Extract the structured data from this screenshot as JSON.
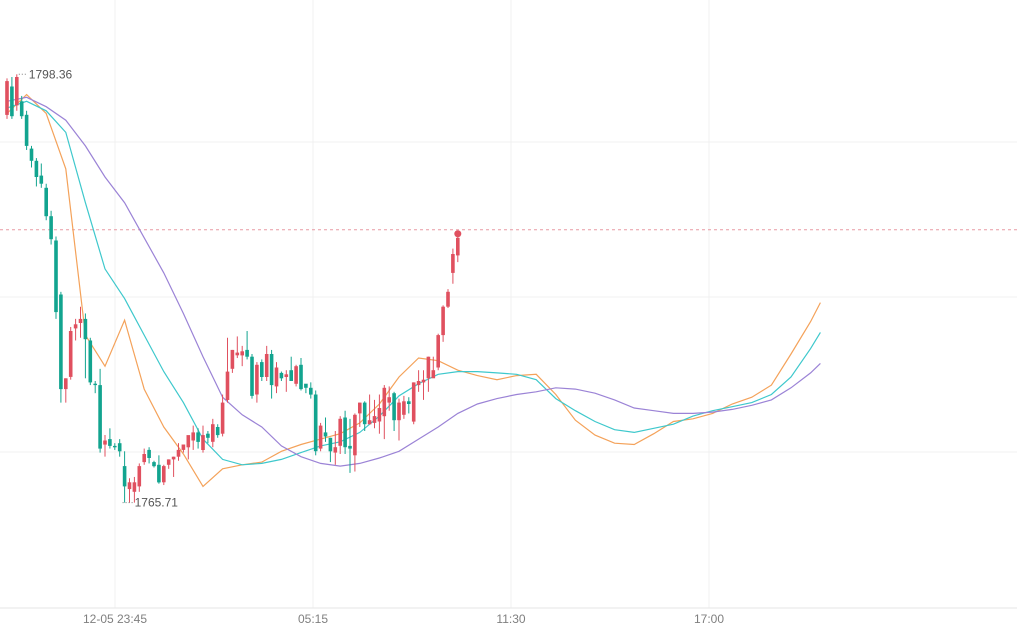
{
  "chart_data": {
    "type": "candlestick",
    "ylim": [
      1759,
      1804
    ],
    "x_ticks": [
      "12-05 23:45",
      "05:15",
      "11:30",
      "17:00"
    ],
    "current_price": 1787,
    "annotations": {
      "high": "1798.36",
      "low": "1765.71"
    },
    "colors": {
      "up": "#e0505f",
      "down": "#12a48f",
      "ma1": "#f4a25a",
      "ma2": "#3ec8cc",
      "ma3": "#9b83d6",
      "grid": "#f0f0f0",
      "text": "#7f7f7f"
    },
    "candles": [
      [
        1795.5,
        1798.0,
        1795.2,
        1798.2
      ],
      [
        1797.6,
        1795.4,
        1795.2,
        1798.3
      ],
      [
        1796.2,
        1798.3,
        1795.8,
        1798.5
      ],
      [
        1796.5,
        1795.4,
        1795.2,
        1796.9
      ],
      [
        1795.5,
        1793.2,
        1792.9,
        1795.8
      ],
      [
        1793.0,
        1792.1,
        1791.6,
        1793.2
      ],
      [
        1792.1,
        1790.9,
        1790.2,
        1792.3
      ],
      [
        1791.0,
        1790.4,
        1790.1,
        1791.9
      ],
      [
        1790.1,
        1788.0,
        1787.7,
        1790.4
      ],
      [
        1788.0,
        1786.3,
        1785.9,
        1788.4
      ],
      [
        1786.2,
        1780.9,
        1780.4,
        1786.5
      ],
      [
        1782.2,
        1775.2,
        1774.2,
        1782.4
      ],
      [
        1775.2,
        1776.0,
        1774.2,
        1776.0
      ],
      [
        1776.1,
        1779.5,
        1775.9,
        1779.8
      ],
      [
        1779.7,
        1780.0,
        1778.8,
        1780.4
      ],
      [
        1780.1,
        1780.4,
        1779.0,
        1781.3
      ],
      [
        1780.4,
        1778.9,
        1776.0,
        1780.8
      ],
      [
        1778.8,
        1775.7,
        1775.5,
        1779.0
      ],
      [
        1775.6,
        1775.5,
        1774.9,
        1775.8
      ],
      [
        1775.5,
        1770.8,
        1770.5,
        1776.7
      ],
      [
        1771.1,
        1771.4,
        1770.2,
        1771.8
      ],
      [
        1771.5,
        1771.0,
        1770.8,
        1772.3
      ],
      [
        1771.0,
        1770.9,
        1770.7,
        1771.2
      ],
      [
        1771.2,
        1770.6,
        1770.2,
        1771.5
      ],
      [
        1769.5,
        1768.0,
        1766.8,
        1770.6
      ],
      [
        1767.8,
        1768.3,
        1766.8,
        1768.6
      ],
      [
        1767.6,
        1768.3,
        1766.8,
        1768.7
      ],
      [
        1768.0,
        1769.5,
        1767.6,
        1769.7
      ],
      [
        1769.8,
        1770.4,
        1769.6,
        1770.8
      ],
      [
        1770.7,
        1770.1,
        1769.7,
        1770.9
      ],
      [
        1769.8,
        1769.5,
        1769.4,
        1769.9
      ],
      [
        1769.6,
        1768.3,
        1768.2,
        1770.3
      ],
      [
        1768.3,
        1769.5,
        1768.1,
        1769.6
      ],
      [
        1769.6,
        1770.0,
        1769.3,
        1770.0
      ],
      [
        1770.0,
        1770.2,
        1768.7,
        1770.2
      ],
      [
        1770.2,
        1770.7,
        1769.9,
        1771.2
      ],
      [
        1770.7,
        1771.1,
        1770.5,
        1771.1
      ],
      [
        1770.9,
        1771.8,
        1770.0,
        1771.6
      ],
      [
        1771.4,
        1772.0,
        1770.7,
        1772.5
      ],
      [
        1772.0,
        1771.3,
        1770.8,
        1772.3
      ],
      [
        1770.7,
        1771.8,
        1770.5,
        1772.5
      ],
      [
        1771.9,
        1771.6,
        1771.2,
        1772.1
      ],
      [
        1771.3,
        1772.6,
        1770.9,
        1773.0
      ],
      [
        1772.4,
        1771.8,
        1771.6,
        1772.6
      ],
      [
        1771.9,
        1774.2,
        1771.7,
        1774.8
      ],
      [
        1774.4,
        1776.5,
        1774.2,
        1779.0
      ],
      [
        1776.7,
        1778.1,
        1776.4,
        1778.1
      ],
      [
        1777.7,
        1777.9,
        1777.5,
        1779.1
      ],
      [
        1777.7,
        1778.0,
        1776.9,
        1778.4
      ],
      [
        1778.1,
        1777.6,
        1777.4,
        1779.5
      ],
      [
        1777.6,
        1774.7,
        1774.5,
        1777.8
      ],
      [
        1774.8,
        1777.0,
        1774.2,
        1777.2
      ],
      [
        1777.2,
        1776.1,
        1775.8,
        1777.4
      ],
      [
        1776.1,
        1777.8,
        1775.8,
        1778.4
      ],
      [
        1777.8,
        1775.5,
        1774.5,
        1778.1
      ],
      [
        1775.4,
        1776.8,
        1774.9,
        1777.2
      ],
      [
        1776.4,
        1776.0,
        1775.8,
        1776.5
      ],
      [
        1776.1,
        1776.3,
        1775.0,
        1776.6
      ],
      [
        1776.6,
        1775.8,
        1775.8,
        1777.6
      ],
      [
        1775.6,
        1776.9,
        1775.4,
        1777.0
      ],
      [
        1777.0,
        1775.2,
        1775.1,
        1777.5
      ],
      [
        1775.6,
        1775.3,
        1774.9,
        1775.5
      ],
      [
        1775.3,
        1774.8,
        1774.5,
        1775.7
      ],
      [
        1774.8,
        1770.6,
        1770.3,
        1775.1
      ],
      [
        1770.8,
        1772.5,
        1770.6,
        1772.7
      ],
      [
        1772.0,
        1771.7,
        1771.3,
        1773.1
      ],
      [
        1771.6,
        1770.6,
        1769.8,
        1771.6
      ],
      [
        1770.5,
        1770.9,
        1769.6,
        1772.1
      ],
      [
        1771.0,
        1773.0,
        1770.4,
        1773.2
      ],
      [
        1773.1,
        1770.9,
        1770.4,
        1773.6
      ],
      [
        1771.0,
        1770.8,
        1769.0,
        1773.0
      ],
      [
        1770.3,
        1773.3,
        1769.1,
        1773.4
      ],
      [
        1773.4,
        1774.2,
        1772.4,
        1774.2
      ],
      [
        1774.2,
        1772.6,
        1772.1,
        1774.3
      ],
      [
        1772.6,
        1772.9,
        1772.6,
        1774.8
      ],
      [
        1772.7,
        1773.2,
        1772.3,
        1774.4
      ],
      [
        1772.8,
        1773.8,
        1771.9,
        1774.8
      ],
      [
        1773.2,
        1775.3,
        1771.5,
        1775.5
      ],
      [
        1774.2,
        1774.6,
        1773.6,
        1775.4
      ],
      [
        1774.9,
        1772.9,
        1772.1,
        1775.0
      ],
      [
        1772.9,
        1774.2,
        1771.4,
        1774.5
      ],
      [
        1773.3,
        1774.3,
        1773.0,
        1774.7
      ],
      [
        1774.3,
        1774.1,
        1773.4,
        1774.6
      ],
      [
        1772.8,
        1775.7,
        1772.6,
        1775.7
      ],
      [
        1775.5,
        1775.8,
        1775.0,
        1776.6
      ],
      [
        1775.7,
        1775.9,
        1774.4,
        1776.6
      ],
      [
        1776.0,
        1777.6,
        1775.0,
        1777.6
      ],
      [
        1776.0,
        1776.6,
        1776.2,
        1777.6
      ],
      [
        1776.8,
        1779.2,
        1776.6,
        1779.3
      ],
      [
        1779.2,
        1781.3,
        1778.7,
        1781.4
      ],
      [
        1781.3,
        1782.4,
        1781.2,
        1782.6
      ],
      [
        1783.8,
        1785.2,
        1783.0,
        1785.6
      ],
      [
        1785.1,
        1786.4,
        1784.6,
        1786.7
      ]
    ],
    "ma_series": [
      {
        "points": [
          [
            0,
            1795.6
          ],
          [
            4,
            1797.0
          ],
          [
            8,
            1795.6
          ],
          [
            12,
            1791.5
          ],
          [
            16,
            1779.2
          ],
          [
            20,
            1776.9
          ],
          [
            24,
            1780.3
          ],
          [
            28,
            1775.2
          ],
          [
            32,
            1772.4
          ],
          [
            36,
            1770.4
          ],
          [
            40,
            1768.0
          ],
          [
            44,
            1769.3
          ],
          [
            48,
            1769.6
          ],
          [
            52,
            1769.8
          ],
          [
            56,
            1770.6
          ],
          [
            60,
            1771.1
          ],
          [
            64,
            1771.5
          ],
          [
            68,
            1771.9
          ],
          [
            72,
            1772.7
          ],
          [
            76,
            1774.1
          ],
          [
            80,
            1776.1
          ],
          [
            84,
            1777.5
          ],
          [
            88,
            1777.3
          ],
          [
            92,
            1776.6
          ],
          [
            96,
            1776.2
          ],
          [
            100,
            1775.9
          ],
          [
            104,
            1776.2
          ],
          [
            108,
            1776.3
          ],
          [
            112,
            1774.8
          ],
          [
            116,
            1772.9
          ],
          [
            120,
            1771.8
          ],
          [
            124,
            1771.2
          ],
          [
            128,
            1771.1
          ],
          [
            132,
            1771.9
          ],
          [
            136,
            1772.8
          ],
          [
            140,
            1773.0
          ],
          [
            144,
            1773.4
          ],
          [
            148,
            1774.1
          ],
          [
            152,
            1774.6
          ],
          [
            156,
            1775.5
          ],
          [
            160,
            1777.8
          ],
          [
            164,
            1780.2
          ],
          [
            166,
            1781.6
          ]
        ]
      },
      {
        "points": [
          [
            0,
            1796.0
          ],
          [
            4,
            1796.5
          ],
          [
            8,
            1795.8
          ],
          [
            12,
            1794.2
          ],
          [
            16,
            1789.0
          ],
          [
            20,
            1784.1
          ],
          [
            24,
            1781.9
          ],
          [
            28,
            1779.2
          ],
          [
            32,
            1776.5
          ],
          [
            36,
            1774.2
          ],
          [
            40,
            1771.5
          ],
          [
            44,
            1770.0
          ],
          [
            48,
            1769.6
          ],
          [
            52,
            1769.7
          ],
          [
            56,
            1770.0
          ],
          [
            60,
            1770.5
          ],
          [
            64,
            1771.0
          ],
          [
            68,
            1771.3
          ],
          [
            72,
            1772.0
          ],
          [
            76,
            1773.2
          ],
          [
            80,
            1774.7
          ],
          [
            84,
            1775.6
          ],
          [
            88,
            1776.3
          ],
          [
            92,
            1776.5
          ],
          [
            96,
            1776.5
          ],
          [
            100,
            1776.4
          ],
          [
            104,
            1776.3
          ],
          [
            108,
            1775.9
          ],
          [
            112,
            1774.5
          ],
          [
            116,
            1773.6
          ],
          [
            120,
            1772.8
          ],
          [
            124,
            1772.2
          ],
          [
            128,
            1772.0
          ],
          [
            132,
            1772.3
          ],
          [
            136,
            1772.6
          ],
          [
            140,
            1773.2
          ],
          [
            144,
            1773.6
          ],
          [
            148,
            1773.9
          ],
          [
            152,
            1774.2
          ],
          [
            156,
            1774.8
          ],
          [
            160,
            1776.1
          ],
          [
            164,
            1778.2
          ],
          [
            166,
            1779.4
          ]
        ]
      },
      {
        "points": [
          [
            0,
            1796.5
          ],
          [
            4,
            1796.8
          ],
          [
            8,
            1796.1
          ],
          [
            12,
            1795.1
          ],
          [
            16,
            1793.2
          ],
          [
            20,
            1790.9
          ],
          [
            24,
            1789.0
          ],
          [
            28,
            1786.4
          ],
          [
            32,
            1783.8
          ],
          [
            36,
            1780.8
          ],
          [
            40,
            1777.6
          ],
          [
            44,
            1774.6
          ],
          [
            48,
            1773.3
          ],
          [
            52,
            1772.4
          ],
          [
            56,
            1771.0
          ],
          [
            60,
            1770.2
          ],
          [
            64,
            1769.7
          ],
          [
            68,
            1769.5
          ],
          [
            72,
            1769.7
          ],
          [
            76,
            1770.1
          ],
          [
            80,
            1770.6
          ],
          [
            84,
            1771.5
          ],
          [
            88,
            1772.4
          ],
          [
            92,
            1773.4
          ],
          [
            96,
            1774.1
          ],
          [
            100,
            1774.5
          ],
          [
            104,
            1774.8
          ],
          [
            108,
            1775.0
          ],
          [
            112,
            1775.3
          ],
          [
            116,
            1775.2
          ],
          [
            120,
            1774.9
          ],
          [
            124,
            1774.4
          ],
          [
            128,
            1773.8
          ],
          [
            132,
            1773.6
          ],
          [
            136,
            1773.4
          ],
          [
            140,
            1773.4
          ],
          [
            144,
            1773.5
          ],
          [
            148,
            1773.7
          ],
          [
            152,
            1774.0
          ],
          [
            156,
            1774.4
          ],
          [
            160,
            1775.3
          ],
          [
            164,
            1776.4
          ],
          [
            166,
            1777.1
          ]
        ]
      }
    ]
  }
}
